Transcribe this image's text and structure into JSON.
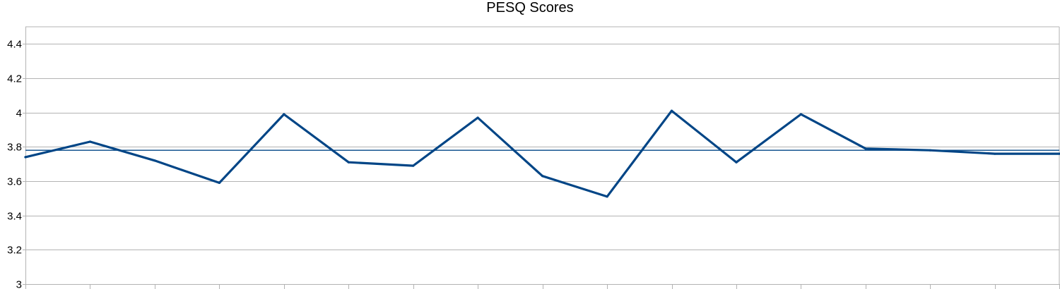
{
  "chart_data": {
    "type": "line",
    "title": "PESQ Scores",
    "xlabel": "",
    "ylabel": "",
    "ylim": [
      3,
      4.5
    ],
    "y_ticks": [
      "3",
      "3.2",
      "3.4",
      "3.6",
      "3.8",
      "4",
      "4.2",
      "4.4"
    ],
    "y_tick_values": [
      3,
      3.2,
      3.4,
      3.6,
      3.8,
      4,
      4.2,
      4.4
    ],
    "grid": true,
    "legend": "none",
    "series": [
      {
        "values": [
          3.74,
          3.83,
          3.72,
          3.59,
          3.99,
          3.71,
          3.69,
          3.97,
          3.63,
          3.51,
          4.01,
          3.71,
          3.99,
          3.79,
          3.78,
          3.76,
          3.76
        ],
        "color": "#004586"
      }
    ],
    "reference_line": {
      "value": 3.78,
      "color": "#004586"
    },
    "gridline_color": "#b3b3b3"
  }
}
